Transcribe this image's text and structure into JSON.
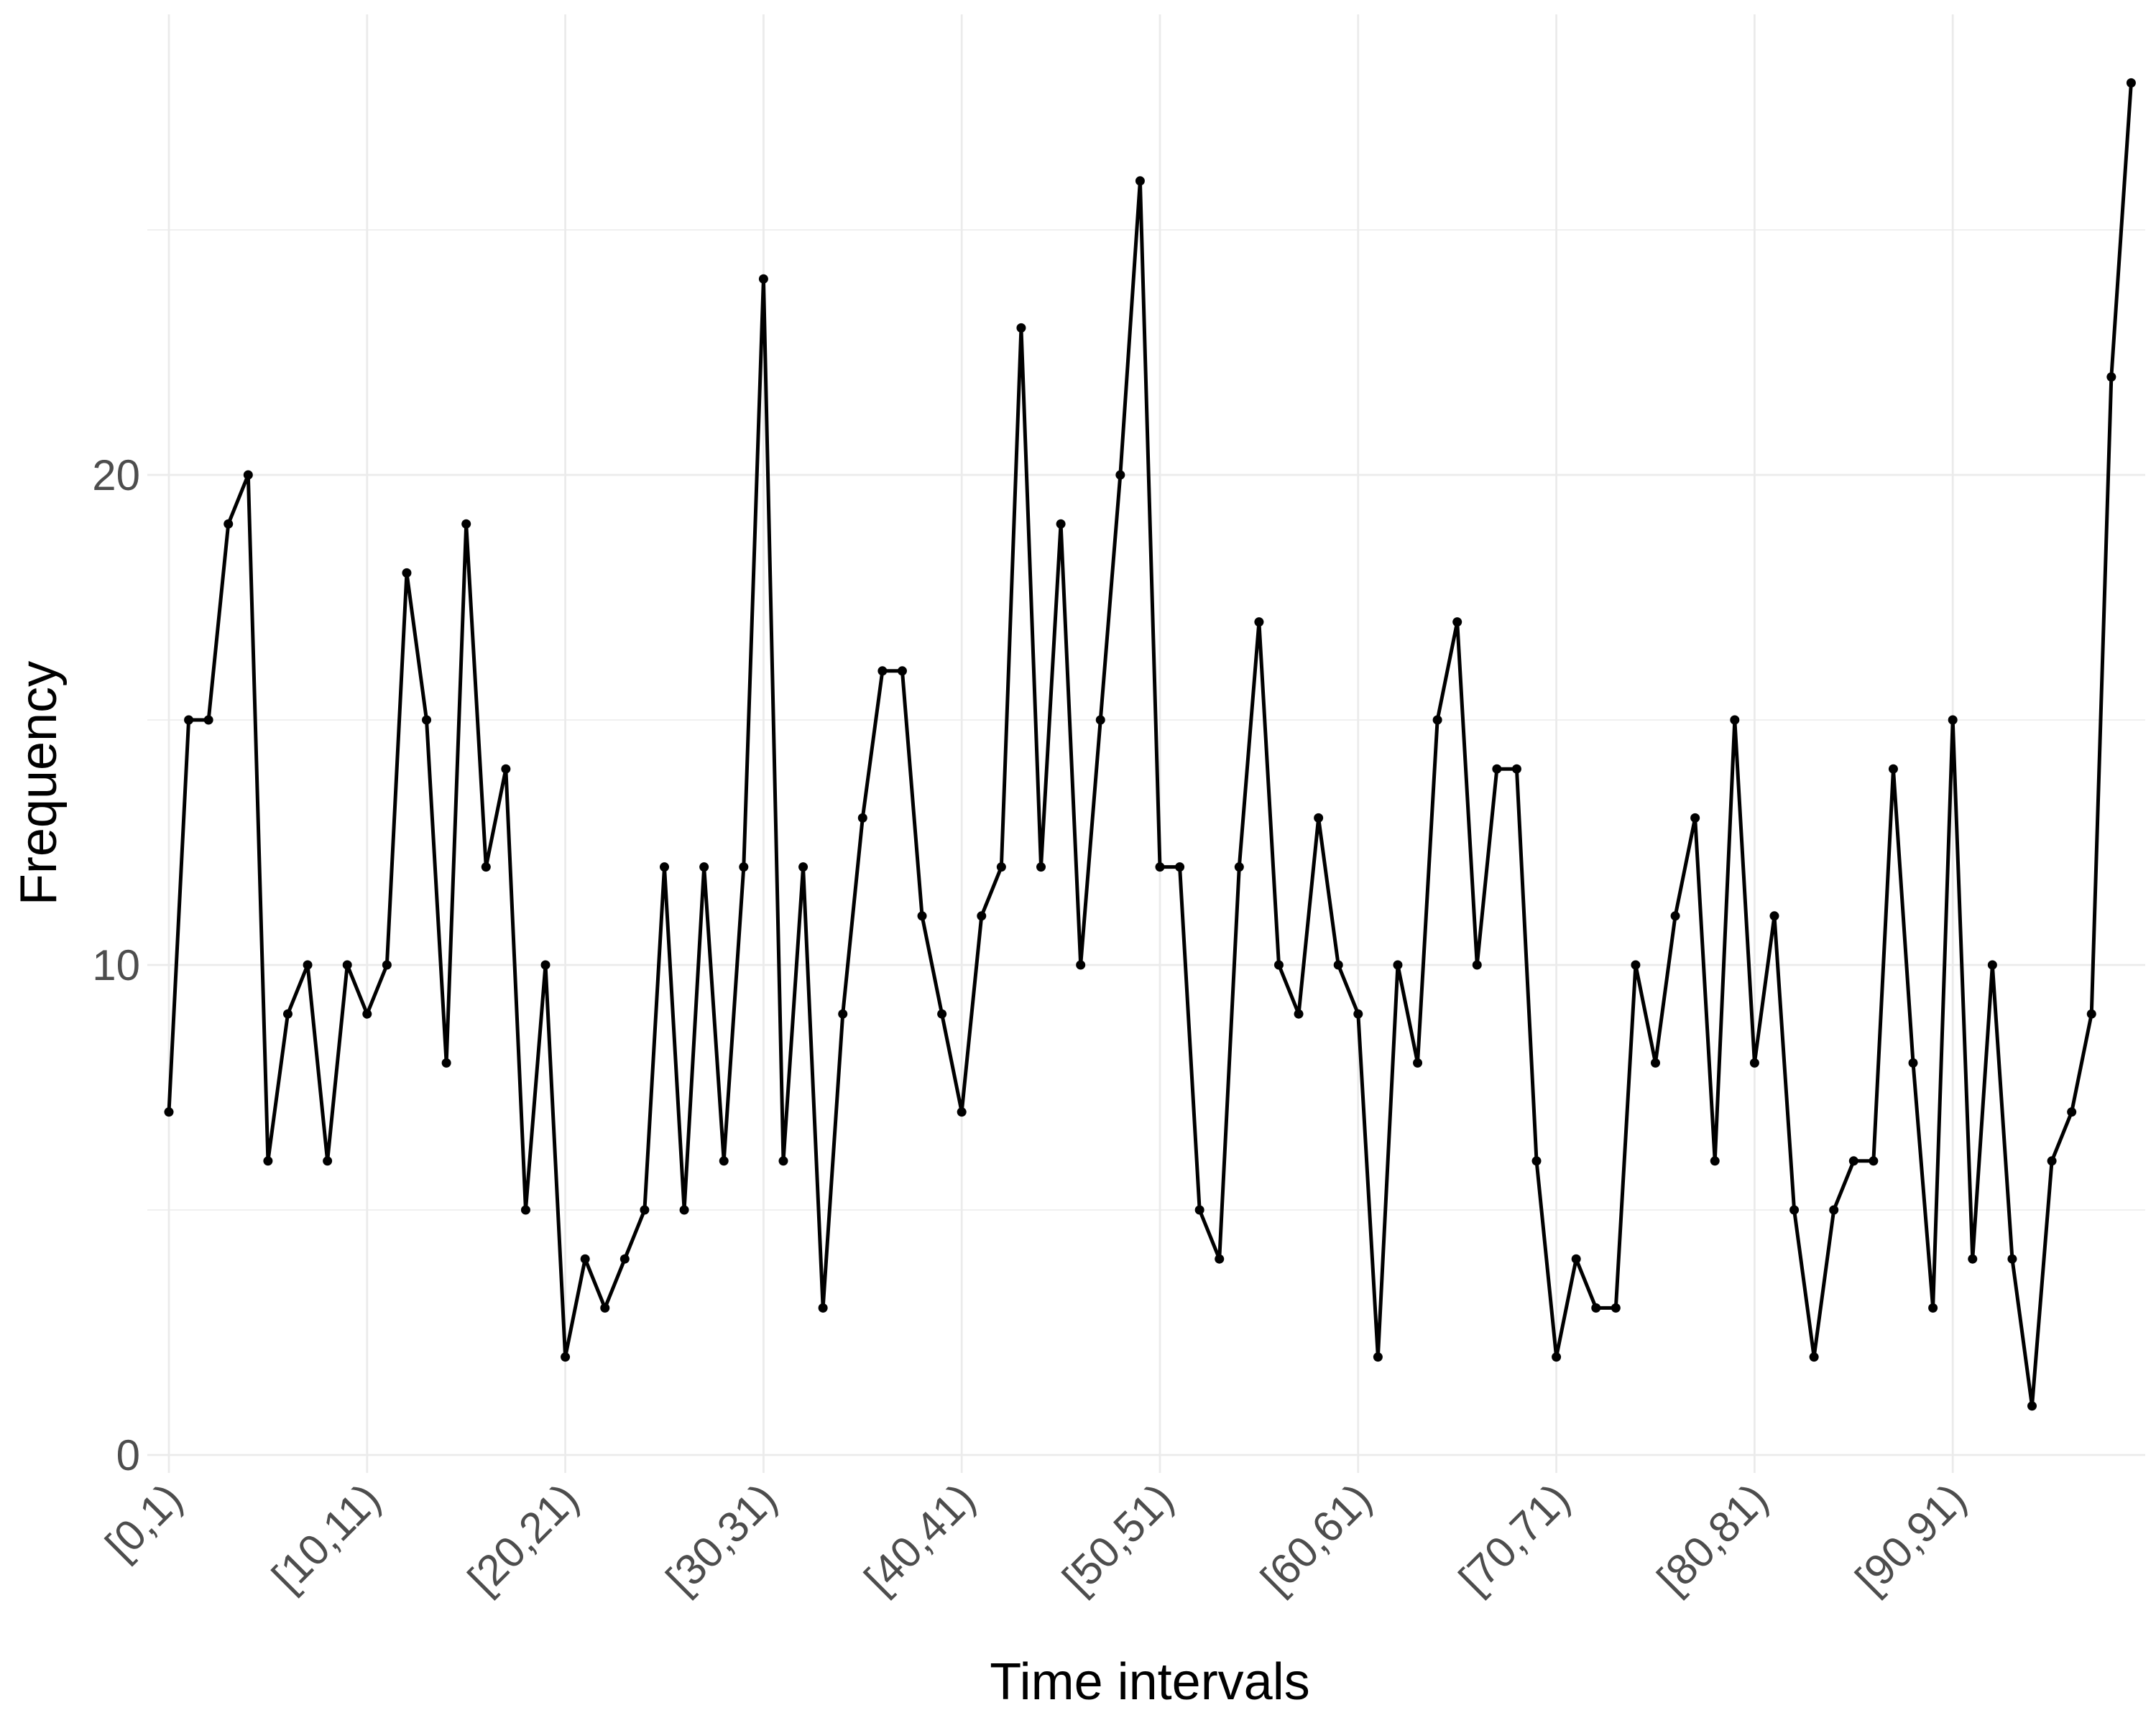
{
  "chart_data": {
    "type": "line",
    "title": "",
    "xlabel": "Time intervals",
    "ylabel": "Frequency",
    "x_tick_labels": [
      "[0,1)",
      "[10,11)",
      "[20,21)",
      "[30,31)",
      "[40,41)",
      "[50,51)",
      "[60,61)",
      "[70,71)",
      "[80,81)",
      "[90,91)"
    ],
    "x_tick_indices": [
      0,
      10,
      20,
      30,
      40,
      50,
      60,
      70,
      80,
      90
    ],
    "y_tick_labels": [
      "0",
      "10",
      "20"
    ],
    "y_ticks": [
      0,
      10,
      20
    ],
    "y_minor_ticks": [
      5,
      15,
      25
    ],
    "ylim": [
      0,
      28
    ],
    "grid": true,
    "series": [
      {
        "color": "#000000",
        "values": [
          7,
          15,
          15,
          19,
          20,
          6,
          9,
          10,
          6,
          10,
          9,
          10,
          18,
          15,
          8,
          19,
          12,
          14,
          5,
          10,
          2,
          4,
          3,
          4,
          5,
          12,
          5,
          12,
          6,
          12,
          24,
          6,
          12,
          3,
          9,
          13,
          16,
          16,
          11,
          9,
          7,
          11,
          12,
          23,
          12,
          19,
          10,
          15,
          20,
          26,
          12,
          12,
          5,
          4,
          12,
          17,
          10,
          9,
          13,
          10,
          9,
          2,
          10,
          8,
          15,
          17,
          10,
          14,
          14,
          6,
          2,
          4,
          3,
          3,
          10,
          8,
          11,
          13,
          6,
          15,
          8,
          11,
          5,
          2,
          5,
          6,
          6,
          14,
          8,
          3,
          15,
          4,
          10,
          4,
          1,
          6,
          7,
          9,
          22,
          28
        ]
      }
    ]
  }
}
